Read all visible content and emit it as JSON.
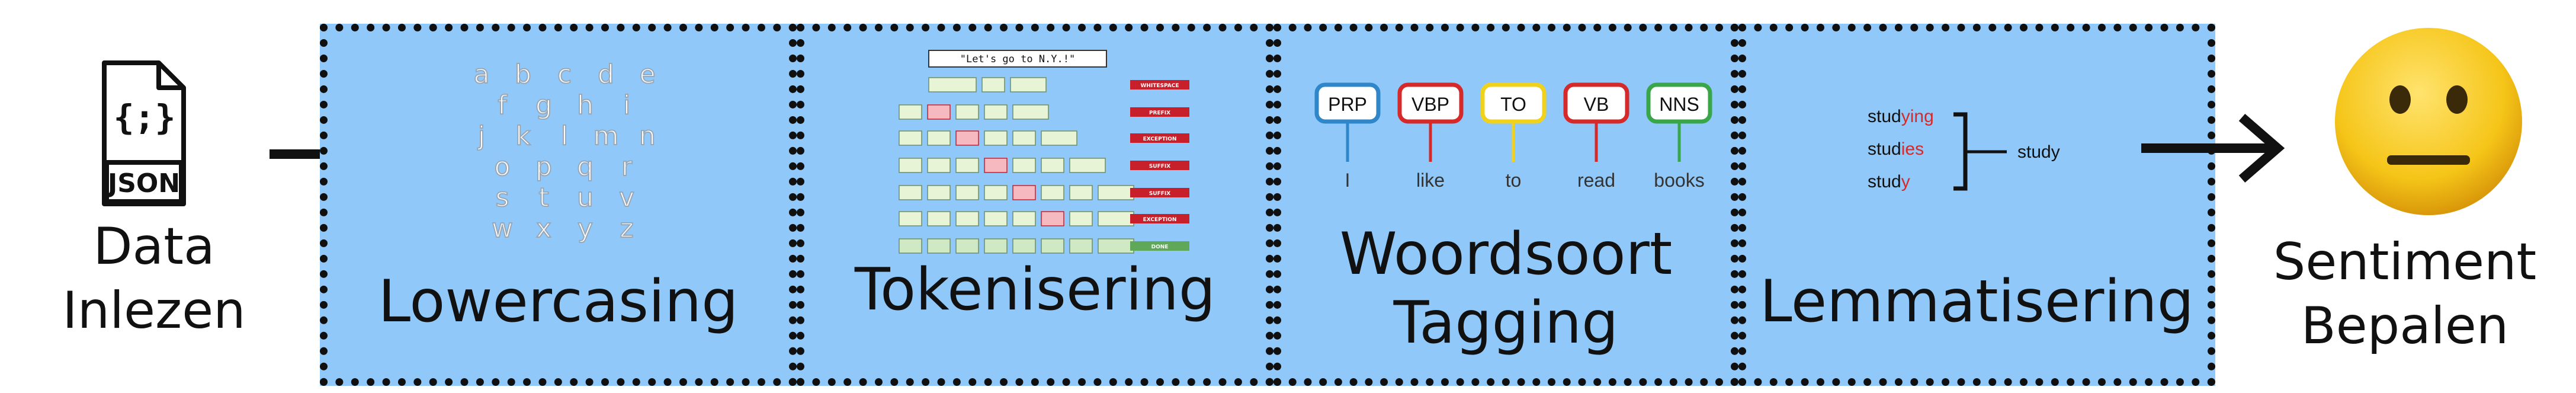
{
  "input": {
    "icon_text": "JSON",
    "icon_symbol": "{;}",
    "label_line1": "Data",
    "label_line2": "Inlezen"
  },
  "steps": [
    {
      "label": "Lowercasing",
      "letters": [
        "a",
        "b",
        "c",
        "d",
        "e",
        "f",
        "g",
        "h",
        "i",
        "j",
        "k",
        "l",
        "m",
        "n",
        "o",
        "p",
        "q",
        "r",
        "s",
        "t",
        "u",
        "v",
        "w",
        "x",
        "y",
        "z"
      ]
    },
    {
      "label": "Tokenisering",
      "sentence": "\"Let's go to N.Y.!\"",
      "rule_labels": [
        "WHITESPACE",
        "PREFIX",
        "EXCEPTION",
        "SUFFIX",
        "SUFFIX",
        "EXCEPTION",
        "DONE"
      ]
    },
    {
      "label_line1": "Woordsoort",
      "label_line2": "Tagging",
      "tags": [
        {
          "tag": "PRP",
          "word": "I",
          "color": "#2f86c9"
        },
        {
          "tag": "VBP",
          "word": "like",
          "color": "#d62a2a"
        },
        {
          "tag": "TO",
          "word": "to",
          "color": "#f0d21c"
        },
        {
          "tag": "VB",
          "word": "read",
          "color": "#d62a2a"
        },
        {
          "tag": "NNS",
          "word": "books",
          "color": "#3aa64a"
        }
      ]
    },
    {
      "label": "Lemmatisering",
      "forms": [
        {
          "stem": "stud",
          "suffix": "ying"
        },
        {
          "stem": "stud",
          "suffix": "ies"
        },
        {
          "stem": "stud",
          "suffix": "y"
        }
      ],
      "lemma": "study"
    }
  ],
  "output": {
    "label_line1": "Sentiment",
    "label_line2": "Bepalen"
  },
  "colors": {
    "panel_fill": "#8fc8f9",
    "border": "#101010",
    "accent_red": "#d62a2a",
    "smiley_yellow": "#f5c518"
  }
}
